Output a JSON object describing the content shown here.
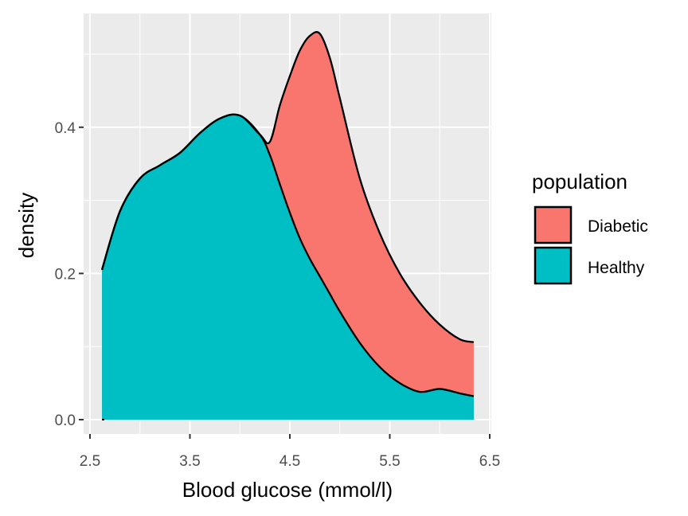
{
  "chart_data": {
    "type": "area",
    "subtype": "stacked-density",
    "xlabel": "Blood glucose (mmol/l)",
    "ylabel": "density",
    "xlim": [
      2.5,
      6.5
    ],
    "ylim": [
      0,
      0.55
    ],
    "x_ticks": [
      2.5,
      3.5,
      4.5,
      5.5,
      6.5
    ],
    "x_tick_labels": [
      "2.5",
      "3.5",
      "4.5",
      "5.5",
      "6.5"
    ],
    "y_ticks": [
      0.0,
      0.2,
      0.4
    ],
    "y_tick_labels": [
      "0.0",
      "0.2",
      "0.4"
    ],
    "grid": true,
    "panel_background": "#ebebeb",
    "legend": {
      "title": "population",
      "position": "right",
      "entries": [
        {
          "label": "Diabetic",
          "color": "#f8766d"
        },
        {
          "label": "Healthy",
          "color": "#00bfc4"
        }
      ]
    },
    "x": [
      2.62,
      2.8,
      3.0,
      3.2,
      3.4,
      3.6,
      3.8,
      4.0,
      4.2,
      4.3,
      4.4,
      4.5,
      4.6,
      4.7,
      4.8,
      4.9,
      5.0,
      5.2,
      5.4,
      5.6,
      5.8,
      6.0,
      6.2,
      6.34
    ],
    "series": [
      {
        "name": "Healthy",
        "color": "#00bfc4",
        "values": [
          0.205,
          0.285,
          0.33,
          0.348,
          0.365,
          0.392,
          0.412,
          0.416,
          0.39,
          0.362,
          0.322,
          0.283,
          0.248,
          0.22,
          0.196,
          0.172,
          0.148,
          0.105,
          0.072,
          0.05,
          0.038,
          0.042,
          0.036,
          0.032
        ]
      },
      {
        "name": "Diabetic",
        "color": "#f8766d",
        "stacked_top": [
          0.205,
          0.285,
          0.33,
          0.348,
          0.365,
          0.392,
          0.412,
          0.416,
          0.39,
          0.38,
          0.43,
          0.47,
          0.505,
          0.525,
          0.528,
          0.495,
          0.44,
          0.33,
          0.255,
          0.2,
          0.16,
          0.13,
          0.11,
          0.106
        ]
      }
    ]
  }
}
